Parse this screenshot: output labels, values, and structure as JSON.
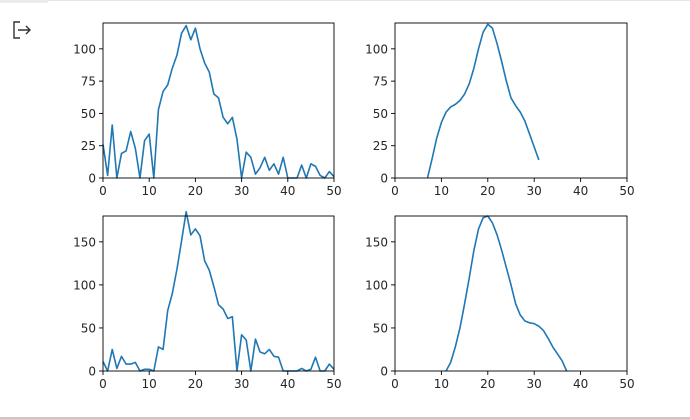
{
  "icons": {
    "output_prompt": "output-arrow-icon"
  },
  "colors": {
    "line": "#1f77b4",
    "axes": "#000000",
    "text": "#262626"
  },
  "chart_data": [
    {
      "type": "line",
      "x": [
        0,
        1,
        2,
        3,
        4,
        5,
        6,
        7,
        8,
        9,
        10,
        11,
        12,
        13,
        14,
        15,
        16,
        17,
        18,
        19,
        20,
        21,
        22,
        23,
        24,
        25,
        26,
        27,
        28,
        29,
        30,
        31,
        32,
        33,
        34,
        35,
        36,
        37,
        38,
        39,
        40,
        41,
        42,
        43,
        44,
        45,
        46,
        47,
        48,
        49,
        50
      ],
      "series": [
        {
          "values": [
            26,
            2,
            41,
            0,
            19,
            21,
            36,
            23,
            0,
            29,
            34,
            0,
            53,
            67,
            72,
            85,
            95,
            112,
            118,
            107,
            116,
            100,
            89,
            82,
            65,
            62,
            47,
            42,
            47,
            30,
            0,
            20,
            16,
            3,
            8,
            16,
            6,
            11,
            3,
            16,
            0,
            0,
            0,
            10,
            0,
            11,
            9,
            2,
            0,
            5,
            1
          ]
        }
      ],
      "xlim": [
        0,
        50
      ],
      "ylim": [
        0,
        120
      ],
      "xticks": [
        "0",
        "10",
        "20",
        "30",
        "40",
        "50"
      ],
      "yticks": [
        "0",
        "25",
        "50",
        "75",
        "100"
      ],
      "grid": false
    },
    {
      "type": "line",
      "x": [
        7,
        8,
        9,
        10,
        11,
        12,
        13,
        14,
        15,
        16,
        17,
        18,
        19,
        20,
        21,
        22,
        23,
        24,
        25,
        26,
        27,
        28,
        29,
        30,
        31
      ],
      "series": [
        {
          "values": [
            0,
            15,
            31,
            43,
            51,
            55,
            57,
            60,
            65,
            73,
            85,
            100,
            113,
            119,
            116,
            104,
            90,
            75,
            62,
            56,
            51,
            44,
            34,
            24,
            14
          ]
        }
      ],
      "xlim": [
        0,
        50
      ],
      "ylim": [
        0,
        120
      ],
      "xticks": [
        "0",
        "10",
        "20",
        "30",
        "40",
        "50"
      ],
      "yticks": [
        "0",
        "25",
        "50",
        "75",
        "100"
      ],
      "grid": false
    },
    {
      "type": "line",
      "x": [
        0,
        1,
        2,
        3,
        4,
        5,
        6,
        7,
        8,
        9,
        10,
        11,
        12,
        13,
        14,
        15,
        16,
        17,
        18,
        19,
        20,
        21,
        22,
        23,
        24,
        25,
        26,
        27,
        28,
        29,
        30,
        31,
        32,
        33,
        34,
        35,
        36,
        37,
        38,
        39,
        40,
        41,
        42,
        43,
        44,
        45,
        46,
        47,
        48,
        49,
        50
      ],
      "series": [
        {
          "values": [
            11,
            0,
            25,
            3,
            17,
            8,
            8,
            10,
            0,
            2,
            2,
            0,
            28,
            25,
            70,
            90,
            118,
            151,
            185,
            158,
            165,
            157,
            128,
            117,
            98,
            77,
            72,
            61,
            63,
            0,
            42,
            36,
            0,
            37,
            22,
            20,
            25,
            17,
            16,
            0,
            0,
            0,
            0,
            3,
            0,
            2,
            16,
            0,
            0,
            8,
            2
          ]
        }
      ],
      "xlim": [
        0,
        50
      ],
      "ylim": [
        0,
        180
      ],
      "xticks": [
        "0",
        "10",
        "20",
        "30",
        "40",
        "50"
      ],
      "yticks": [
        "0",
        "50",
        "100",
        "150"
      ],
      "grid": false
    },
    {
      "type": "line",
      "x": [
        11,
        12,
        13,
        14,
        15,
        16,
        17,
        18,
        19,
        20,
        21,
        22,
        23,
        24,
        25,
        26,
        27,
        28,
        29,
        30,
        31,
        32,
        33,
        34,
        35,
        36,
        37
      ],
      "series": [
        {
          "values": [
            0,
            10,
            28,
            50,
            78,
            108,
            140,
            165,
            178,
            180,
            172,
            158,
            140,
            120,
            100,
            78,
            65,
            58,
            56,
            55,
            52,
            47,
            38,
            28,
            20,
            12,
            0
          ]
        }
      ],
      "xlim": [
        0,
        50
      ],
      "ylim": [
        0,
        180
      ],
      "xticks": [
        "0",
        "10",
        "20",
        "30",
        "40",
        "50"
      ],
      "yticks": [
        "0",
        "50",
        "100",
        "150"
      ],
      "grid": false
    }
  ]
}
